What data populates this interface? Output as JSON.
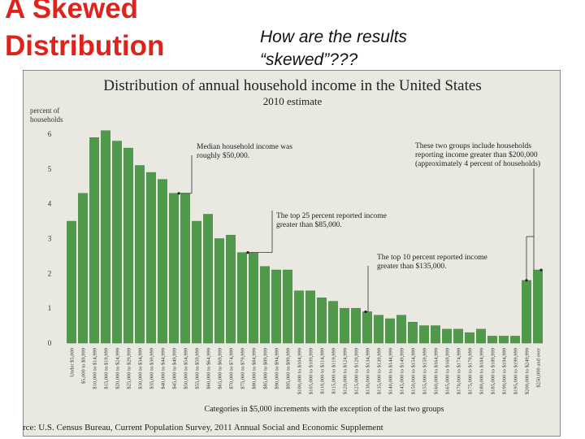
{
  "slide": {
    "title_line1": "A Skewed",
    "title_line2": "Distribution",
    "question_line1": "How are the results",
    "question_line2": "“skewed”???",
    "source": "rce: U.S. Census Bureau, Current Population Survey, 2011 Annual Social and Economic Supplement"
  },
  "colors": {
    "bar": "#4f9a4a",
    "bar_edge": "#3d7f39",
    "title": "#e0221c",
    "panel": "#e9e8e1"
  },
  "chart_data": {
    "type": "bar",
    "title": "Distribution of annual household income in the United States",
    "subtitle": "2010 estimate",
    "ylabel_line1": "percent of",
    "ylabel_line2": "households",
    "xlabel": "Categories in $5,000 increments with the exception of the last two groups",
    "ylim": [
      0,
      6
    ],
    "yticks": [
      "0",
      "1",
      "2",
      "3",
      "4",
      "5",
      "6"
    ],
    "grid": false,
    "categories": [
      "Under $5,000",
      "$5,000 to $9,999",
      "$10,000 to $14,999",
      "$15,000 to $19,999",
      "$20,000 to $24,999",
      "$25,000 to $29,999",
      "$30,000 to $34,999",
      "$35,000 to $39,999",
      "$40,000 to $44,999",
      "$45,000 to $49,999",
      "$50,000 to $54,999",
      "$55,000 to $59,999",
      "$60,000 to $64,999",
      "$65,000 to $69,999",
      "$70,000 to $74,999",
      "$75,000 to $79,999",
      "$80,000 to $84,999",
      "$85,000 to $89,999",
      "$90,000 to $94,999",
      "$95,000 to $99,999",
      "$100,000 to $104,999",
      "$105,000 to $109,999",
      "$110,000 to $114,999",
      "$115,000 to $119,999",
      "$120,000 to $124,999",
      "$125,000 to $129,999",
      "$130,000 to $134,999",
      "$135,000 to $139,999",
      "$140,000 to $144,999",
      "$145,000 to $149,999",
      "$150,000 to $154,999",
      "$155,000 to $159,999",
      "$160,000 to $164,999",
      "$165,000 to $169,999",
      "$170,000 to $174,999",
      "$175,000 to $179,999",
      "$180,000 to $184,999",
      "$185,000 to $189,999",
      "$190,000 to $194,999",
      "$195,000 to $199,999",
      "$200,000 to $249,999",
      "$250,000 and over"
    ],
    "values": [
      3.5,
      4.3,
      5.9,
      6.1,
      5.8,
      5.6,
      5.1,
      4.9,
      4.7,
      4.3,
      4.3,
      3.5,
      3.7,
      3.0,
      3.1,
      2.6,
      2.6,
      2.2,
      2.1,
      2.1,
      1.5,
      1.5,
      1.3,
      1.2,
      1.0,
      1.0,
      0.9,
      0.8,
      0.7,
      0.8,
      0.6,
      0.5,
      0.5,
      0.4,
      0.4,
      0.3,
      0.4,
      0.2,
      0.2,
      0.2,
      1.8,
      2.1
    ],
    "annotations": [
      {
        "bar_index": 9,
        "lines": [
          "Median household income was",
          "roughly $50,000."
        ]
      },
      {
        "bar_index": 16,
        "lines": [
          "The top 25 percent reported income",
          "greater than $85,000."
        ]
      },
      {
        "bar_index": 26,
        "lines": [
          "The top 10 percent reported income",
          "greater than $135,000."
        ]
      },
      {
        "bar_index": 40,
        "bar_index_2": 41,
        "lines": [
          "These two groups include households",
          "reporting income greater than $200,000",
          "(approximately 4 percent of households)"
        ]
      }
    ]
  }
}
